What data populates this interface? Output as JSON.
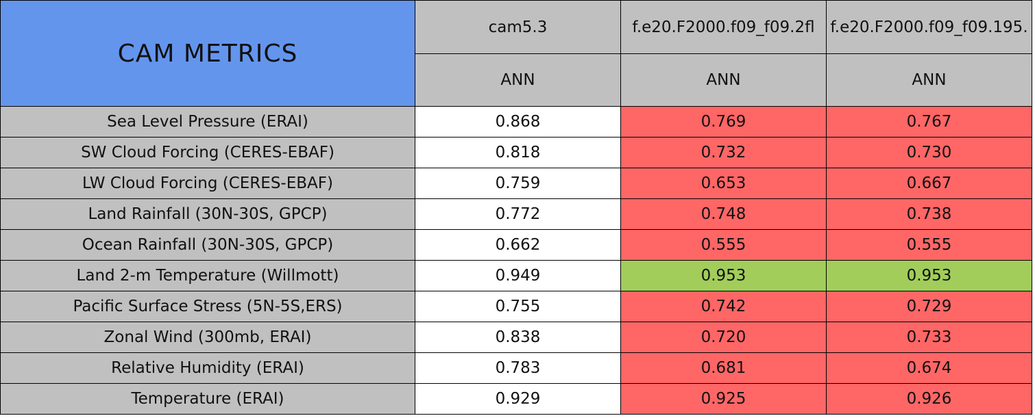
{
  "table": {
    "title": "CAM METRICS",
    "columns": [
      {
        "name": "cam5.3",
        "period": "ANN"
      },
      {
        "name": "f.e20.F2000.f09_f09.2fl",
        "period": "ANN"
      },
      {
        "name": "f.e20.F2000.f09_f09.195.",
        "period": "ANN"
      }
    ],
    "rows": [
      {
        "label": "Sea Level Pressure (ERAI)",
        "cells": [
          "0.868",
          "0.769",
          "0.767"
        ],
        "colors": [
          "#ffffff",
          "#ff6666",
          "#ff6666"
        ]
      },
      {
        "label": "SW Cloud Forcing (CERES-EBAF)",
        "cells": [
          "0.818",
          "0.732",
          "0.730"
        ],
        "colors": [
          "#ffffff",
          "#ff6666",
          "#ff6666"
        ]
      },
      {
        "label": "LW Cloud Forcing (CERES-EBAF)",
        "cells": [
          "0.759",
          "0.653",
          "0.667"
        ],
        "colors": [
          "#ffffff",
          "#ff6666",
          "#ff6666"
        ]
      },
      {
        "label": "Land Rainfall (30N-30S, GPCP)",
        "cells": [
          "0.772",
          "0.748",
          "0.738"
        ],
        "colors": [
          "#ffffff",
          "#ff6666",
          "#ff6666"
        ]
      },
      {
        "label": "Ocean Rainfall (30N-30S, GPCP)",
        "cells": [
          "0.662",
          "0.555",
          "0.555"
        ],
        "colors": [
          "#ffffff",
          "#ff6666",
          "#ff6666"
        ]
      },
      {
        "label": "Land 2-m Temperature (Willmott)",
        "cells": [
          "0.949",
          "0.953",
          "0.953"
        ],
        "colors": [
          "#ffffff",
          "#a2cd5a",
          "#a2cd5a"
        ]
      },
      {
        "label": "Pacific Surface Stress (5N-5S,ERS)",
        "cells": [
          "0.755",
          "0.742",
          "0.729"
        ],
        "colors": [
          "#ffffff",
          "#ff6666",
          "#ff6666"
        ]
      },
      {
        "label": "Zonal Wind (300mb, ERAI)",
        "cells": [
          "0.838",
          "0.720",
          "0.733"
        ],
        "colors": [
          "#ffffff",
          "#ff6666",
          "#ff6666"
        ]
      },
      {
        "label": "Relative Humidity (ERAI)",
        "cells": [
          "0.783",
          "0.681",
          "0.674"
        ],
        "colors": [
          "#ffffff",
          "#ff6666",
          "#ff6666"
        ]
      },
      {
        "label": "Temperature (ERAI)",
        "cells": [
          "0.929",
          "0.925",
          "0.926"
        ],
        "colors": [
          "#ffffff",
          "#ff6666",
          "#ff6666"
        ]
      }
    ]
  }
}
